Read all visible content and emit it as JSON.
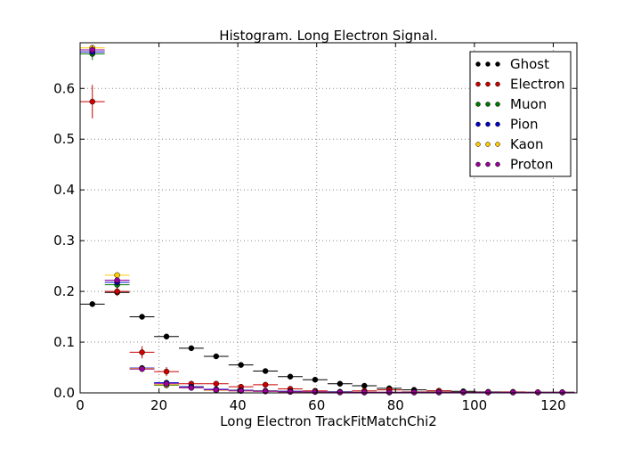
{
  "chart_data": {
    "type": "scatter",
    "title": "Histogram. Long Electron Signal.",
    "xlabel": "Long Electron TrackFitMatchChi2",
    "ylabel": "",
    "xlim": [
      0,
      126
    ],
    "ylim": [
      0,
      0.69
    ],
    "xticks": [
      0,
      20,
      40,
      60,
      80,
      100,
      120
    ],
    "yticks": [
      0.0,
      0.1,
      0.2,
      0.3,
      0.4,
      0.5,
      0.6
    ],
    "ytick_labels": [
      "0.0",
      "0.1",
      "0.2",
      "0.3",
      "0.4",
      "0.5",
      "0.6"
    ],
    "grid": true,
    "legend_position": "top-right",
    "x_bins": [
      3.1,
      9.4,
      15.7,
      21.9,
      28.2,
      34.5,
      40.8,
      47.0,
      53.3,
      59.6,
      65.9,
      72.1,
      78.4,
      84.7,
      91.0,
      97.2,
      103.5,
      109.8,
      116.1,
      122.3
    ],
    "x_halfwidth": 3.14,
    "series": [
      {
        "name": "Ghost",
        "color": "#000000",
        "values": [
          0.175,
          0.198,
          0.15,
          0.111,
          0.088,
          0.072,
          0.055,
          0.043,
          0.032,
          0.026,
          0.018,
          0.014,
          0.009,
          0.006,
          0.004,
          0.003,
          0.002,
          0.001,
          0.001,
          0.001
        ],
        "errors": [
          0.002,
          0.002,
          0.002,
          0.002,
          0.002,
          0.002,
          0.002,
          0.002,
          0.001,
          0.001,
          0.001,
          0.001,
          0.001,
          0.001,
          0.001,
          0.001,
          0.001,
          0.001,
          0.001,
          0.001
        ]
      },
      {
        "name": "Electron",
        "color": "#cc0000",
        "values": [
          0.574,
          0.2,
          0.08,
          0.042,
          0.018,
          0.018,
          0.012,
          0.016,
          0.008,
          0.004,
          0.002,
          0.004,
          0.006,
          0.002,
          0.004,
          0.001,
          0.001,
          0.002,
          0.001,
          0.001
        ],
        "errors": [
          0.033,
          0.009,
          0.012,
          0.009,
          0.004,
          0.004,
          0.003,
          0.004,
          0.003,
          0.002,
          0.002,
          0.002,
          0.002,
          0.001,
          0.002,
          0.001,
          0.001,
          0.001,
          0.001,
          0.001
        ]
      },
      {
        "name": "Muon",
        "color": "#007700",
        "values": [
          0.668,
          0.213,
          0.048,
          0.015,
          0.012,
          0.006,
          0.005,
          0.004,
          0.003,
          0.002,
          0.002,
          0.001,
          0.001,
          0.001,
          0.001,
          0.001,
          0.001,
          0.001,
          0.001,
          0.001
        ],
        "errors": [
          0.012,
          0.006,
          0.003,
          0.002,
          0.002,
          0.001,
          0.001,
          0.001,
          0.001,
          0.001,
          0.001,
          0.001,
          0.001,
          0.001,
          0.001,
          0.001,
          0.001,
          0.001,
          0.001,
          0.001
        ]
      },
      {
        "name": "Pion",
        "color": "#0000cc",
        "values": [
          0.672,
          0.218,
          0.049,
          0.02,
          0.012,
          0.007,
          0.005,
          0.004,
          0.003,
          0.002,
          0.002,
          0.001,
          0.001,
          0.001,
          0.001,
          0.001,
          0.001,
          0.001,
          0.001,
          0.001
        ],
        "errors": [
          0.004,
          0.003,
          0.002,
          0.001,
          0.001,
          0.001,
          0.001,
          0.001,
          0.001,
          0.001,
          0.001,
          0.001,
          0.001,
          0.001,
          0.001,
          0.001,
          0.001,
          0.001,
          0.001,
          0.001
        ]
      },
      {
        "name": "Kaon",
        "color": "#ffcc00",
        "values": [
          0.68,
          0.232,
          0.048,
          0.016,
          0.01,
          0.005,
          0.004,
          0.003,
          0.002,
          0.002,
          0.001,
          0.001,
          0.001,
          0.001,
          0.001,
          0.001,
          0.001,
          0.001,
          0.001,
          0.001
        ],
        "errors": [
          0.006,
          0.004,
          0.002,
          0.002,
          0.001,
          0.001,
          0.001,
          0.001,
          0.001,
          0.001,
          0.001,
          0.001,
          0.001,
          0.001,
          0.001,
          0.001,
          0.001,
          0.001,
          0.001,
          0.001
        ]
      },
      {
        "name": "Proton",
        "color": "#990099",
        "values": [
          0.676,
          0.222,
          0.047,
          0.018,
          0.01,
          0.006,
          0.004,
          0.003,
          0.002,
          0.002,
          0.001,
          0.001,
          0.001,
          0.001,
          0.001,
          0.001,
          0.001,
          0.001,
          0.001,
          0.001
        ],
        "errors": [
          0.008,
          0.005,
          0.003,
          0.002,
          0.001,
          0.001,
          0.001,
          0.001,
          0.001,
          0.001,
          0.001,
          0.001,
          0.001,
          0.001,
          0.001,
          0.001,
          0.001,
          0.001,
          0.001,
          0.001
        ]
      }
    ]
  }
}
